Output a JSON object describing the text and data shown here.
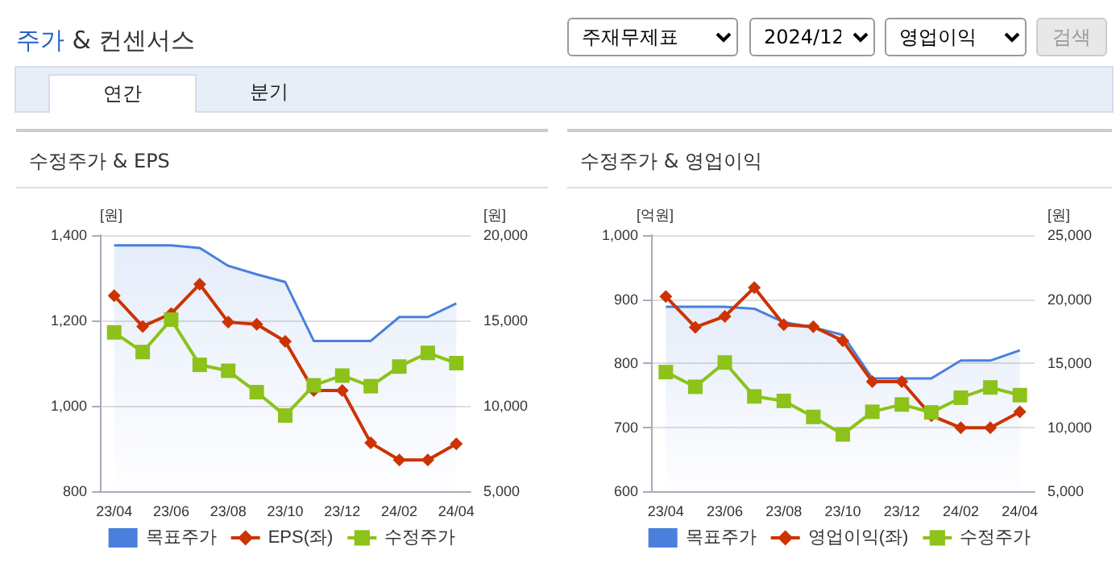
{
  "chart_data": [
    {
      "type": "other",
      "title": "주가 & 컨센서스",
      "annotations": [
        "주재무제표",
        "2024/12",
        "영업이익",
        "검색",
        "연간",
        "분기"
      ]
    },
    {
      "type": "line",
      "title": "수정주가 & EPS",
      "ylabel": "[원]",
      "y2label": "[원]",
      "categories": [
        "23/04",
        null,
        "23/06",
        null,
        "23/08",
        null,
        "23/10",
        null,
        "23/12",
        null,
        "24/02",
        null,
        "24/04"
      ],
      "ylim": [
        800,
        1400
      ],
      "yticks": [
        {
          "value": 800,
          "label": "800"
        },
        {
          "value": 1000,
          "label": "1,000"
        },
        {
          "value": 1200,
          "label": "1,200"
        },
        {
          "value": 1400,
          "label": "1,400"
        }
      ],
      "y2lim": [
        5000,
        20000
      ],
      "y2ticks": [
        {
          "value": 5000,
          "label": "5,000"
        },
        {
          "value": 10000,
          "label": "10,000"
        },
        {
          "value": 15000,
          "label": "15,000"
        },
        {
          "value": 20000,
          "label": "20,000"
        }
      ],
      "grid": "y",
      "legend": "bottom",
      "series": [
        {
          "name": "목표주가",
          "type": "area",
          "axis": "y2",
          "color": "#4a7fdc",
          "marker": "none",
          "values": [
            19400,
            19400,
            19400,
            19250,
            18200,
            17700,
            17250,
            13800,
            13800,
            13800,
            15200,
            15200,
            16000
          ]
        },
        {
          "name": "EPS(좌)",
          "type": "line",
          "color": "#cc3300",
          "marker": "diamond",
          "values": [
            1258,
            1186,
            1216,
            1285,
            1196,
            1191,
            1151,
            1036,
            1036,
            913,
            873,
            873,
            911
          ]
        },
        {
          "name": "수정주가",
          "type": "line",
          "axis": "y2",
          "color": "#8cc21a",
          "marker": "square",
          "values": [
            14300,
            13150,
            15050,
            12400,
            12050,
            10800,
            9430,
            11200,
            11770,
            11150,
            12300,
            13100,
            12500
          ]
        }
      ]
    },
    {
      "type": "line",
      "title": "수정주가 & 영업이익",
      "ylabel": "[억원]",
      "y2label": "[원]",
      "categories": [
        "23/04",
        null,
        "23/06",
        null,
        "23/08",
        null,
        "23/10",
        null,
        "23/12",
        null,
        "24/02",
        null,
        "24/04"
      ],
      "ylim": [
        600,
        1000
      ],
      "yticks": [
        {
          "value": 600,
          "label": "600"
        },
        {
          "value": 700,
          "label": "700"
        },
        {
          "value": 800,
          "label": "800"
        },
        {
          "value": 900,
          "label": "900"
        },
        {
          "value": 1000,
          "label": "1,000"
        }
      ],
      "y2lim": [
        5000,
        25000
      ],
      "y2ticks": [
        {
          "value": 5000,
          "label": "5,000"
        },
        {
          "value": 10000,
          "label": "10,000"
        },
        {
          "value": 15000,
          "label": "15,000"
        },
        {
          "value": 20000,
          "label": "20,000"
        },
        {
          "value": 25000,
          "label": "25,000"
        }
      ],
      "grid": "y",
      "legend": "bottom",
      "series": [
        {
          "name": "목표주가",
          "type": "area",
          "axis": "y2",
          "color": "#4a7fdc",
          "marker": "none",
          "values": [
            19400,
            19400,
            19400,
            19250,
            18200,
            17800,
            17200,
            13800,
            13800,
            13800,
            15200,
            15200,
            16000
          ]
        },
        {
          "name": "영업이익(좌)",
          "type": "line",
          "color": "#cc3300",
          "marker": "diamond",
          "values": [
            904,
            856,
            873,
            918,
            860,
            857,
            835,
            771,
            771,
            718,
            699,
            699,
            724
          ]
        },
        {
          "name": "수정주가",
          "type": "line",
          "axis": "y2",
          "color": "#8cc21a",
          "marker": "square",
          "values": [
            14300,
            13150,
            15050,
            12400,
            12050,
            10800,
            9430,
            11200,
            11770,
            11150,
            12300,
            13100,
            12500
          ]
        }
      ]
    }
  ]
}
